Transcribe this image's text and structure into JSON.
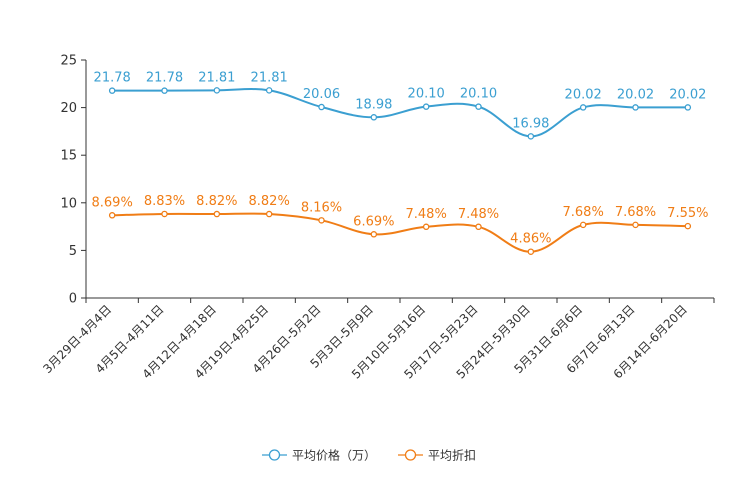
{
  "chart_data": {
    "type": "line",
    "categories": [
      "3月29日-4月4日",
      "4月5日-4月11日",
      "4月12日-4月18日",
      "4月19日-4月25日",
      "4月26日-5月2日",
      "5月3日-5月9日",
      "5月10日-5月16日",
      "5月17日-5月23日",
      "5月24日-5月30日",
      "5月31日-6月6日",
      "6月7日-6月13日",
      "6月14日-6月20日"
    ],
    "ylim": [
      0,
      25
    ],
    "yticks": [
      0,
      5,
      10,
      15,
      20,
      25
    ],
    "series": [
      {
        "name": "平均价格（万）",
        "color": "#3b9fd1",
        "values": [
          21.78,
          21.78,
          21.81,
          21.81,
          20.06,
          18.98,
          20.1,
          20.1,
          16.98,
          20.02,
          20.02,
          20.02
        ],
        "labels": [
          "21.78",
          "21.78",
          "21.81",
          "21.81",
          "20.06",
          "18.98",
          "20.10",
          "20.10",
          "16.98",
          "20.02",
          "20.02",
          "20.02"
        ]
      },
      {
        "name": "平均折扣",
        "color": "#f07d16",
        "values": [
          8.69,
          8.83,
          8.82,
          8.82,
          8.16,
          6.69,
          7.48,
          7.48,
          4.86,
          7.68,
          7.68,
          7.55
        ],
        "labels": [
          "8.69%",
          "8.83%",
          "8.82%",
          "8.82%",
          "8.16%",
          "6.69%",
          "7.48%",
          "7.48%",
          "4.86%",
          "7.68%",
          "7.68%",
          "7.55%"
        ]
      }
    ],
    "legend_position": "bottom-center"
  }
}
